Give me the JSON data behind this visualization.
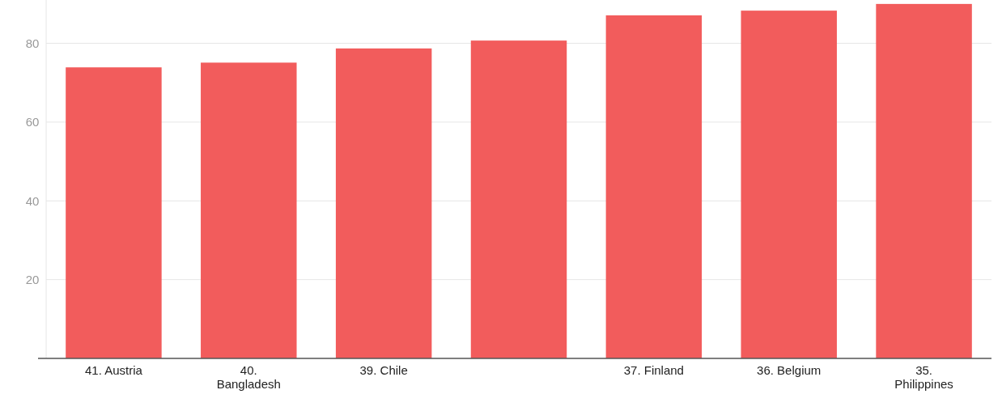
{
  "chart_data": {
    "type": "bar",
    "categories": [
      "41. Austria",
      "40. Bangladesh",
      "39. Chile",
      null,
      "37. Finland",
      "36. Belgium",
      "35. Philippines"
    ],
    "values": [
      73.9,
      75.1,
      78.7,
      80.7,
      87.1,
      88.3,
      90.0
    ],
    "color": "#f25c5c",
    "ylim": [
      0,
      91
    ],
    "yticks": [
      20,
      40,
      60,
      80
    ],
    "grid": "y"
  }
}
